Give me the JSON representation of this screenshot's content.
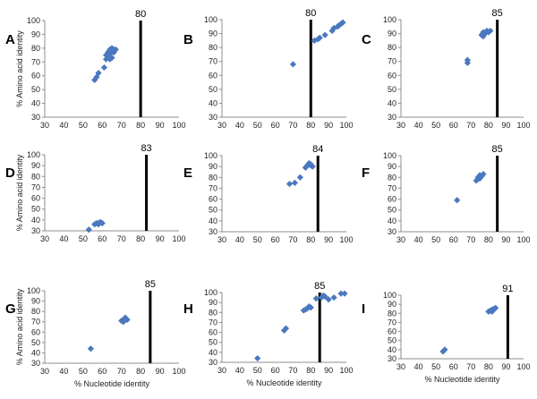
{
  "chart_data": [
    {
      "panel": "A",
      "type": "scatter",
      "threshold_label": "80",
      "threshold": 80,
      "xlim": [
        30,
        100
      ],
      "ylim": [
        30,
        100
      ],
      "xlabel": "",
      "ylabel": "% Amino acid identity",
      "marker_color": "#4a78bf",
      "threshold_color": "#000000",
      "points": [
        [
          56,
          57
        ],
        [
          57,
          59
        ],
        [
          58,
          62
        ],
        [
          61,
          66
        ],
        [
          62,
          72
        ],
        [
          63,
          74
        ],
        [
          62,
          75
        ],
        [
          63,
          77
        ],
        [
          64,
          76
        ],
        [
          64,
          79
        ],
        [
          65,
          80
        ],
        [
          66,
          79
        ],
        [
          65,
          78
        ],
        [
          67,
          79
        ],
        [
          66,
          77
        ],
        [
          64,
          72
        ],
        [
          65,
          73
        ]
      ]
    },
    {
      "panel": "B",
      "type": "scatter",
      "threshold_label": "80",
      "threshold": 80,
      "xlim": [
        30,
        100
      ],
      "ylim": [
        30,
        100
      ],
      "xlabel": "",
      "ylabel": "",
      "marker_color": "#4a78bf",
      "threshold_color": "#000000",
      "points": [
        [
          70,
          68
        ],
        [
          82,
          85
        ],
        [
          84,
          86
        ],
        [
          85,
          87
        ],
        [
          88,
          89
        ],
        [
          92,
          92
        ],
        [
          93,
          94
        ],
        [
          95,
          95
        ],
        [
          96,
          96
        ],
        [
          97,
          97
        ],
        [
          98,
          98
        ]
      ]
    },
    {
      "panel": "C",
      "type": "scatter",
      "threshold_label": "85",
      "threshold": 85,
      "xlim": [
        30,
        100
      ],
      "ylim": [
        30,
        100
      ],
      "xlabel": "",
      "ylabel": "",
      "marker_color": "#4a78bf",
      "threshold_color": "#000000",
      "points": [
        [
          68,
          69
        ],
        [
          68,
          71
        ],
        [
          76,
          89
        ],
        [
          77,
          91
        ],
        [
          78,
          90
        ],
        [
          79,
          92
        ],
        [
          80,
          91
        ],
        [
          81,
          92
        ],
        [
          77,
          88
        ]
      ]
    },
    {
      "panel": "D",
      "type": "scatter",
      "threshold_label": "83",
      "threshold": 83,
      "xlim": [
        30,
        100
      ],
      "ylim": [
        30,
        100
      ],
      "xlabel": "",
      "ylabel": "% Amino acid identity",
      "marker_color": "#4a78bf",
      "threshold_color": "#000000",
      "points": [
        [
          53,
          31
        ],
        [
          56,
          36
        ],
        [
          57,
          37
        ],
        [
          58,
          37
        ],
        [
          59,
          38
        ],
        [
          60,
          37
        ],
        [
          58,
          36
        ]
      ]
    },
    {
      "panel": "E",
      "type": "scatter",
      "threshold_label": "84",
      "threshold": 84,
      "xlim": [
        30,
        100
      ],
      "ylim": [
        30,
        100
      ],
      "xlabel": "",
      "ylabel": "",
      "marker_color": "#4a78bf",
      "threshold_color": "#000000",
      "points": [
        [
          68,
          74
        ],
        [
          71,
          75
        ],
        [
          74,
          80
        ],
        [
          77,
          89
        ],
        [
          78,
          91
        ],
        [
          79,
          92
        ],
        [
          79,
          93
        ],
        [
          80,
          91
        ],
        [
          81,
          90
        ],
        [
          80,
          92
        ]
      ]
    },
    {
      "panel": "F",
      "type": "scatter",
      "threshold_label": "85",
      "threshold": 85,
      "xlim": [
        30,
        100
      ],
      "ylim": [
        30,
        100
      ],
      "xlabel": "",
      "ylabel": "",
      "marker_color": "#4a78bf",
      "threshold_color": "#000000",
      "points": [
        [
          62,
          59
        ],
        [
          73,
          77
        ],
        [
          74,
          80
        ],
        [
          75,
          82
        ],
        [
          76,
          81
        ],
        [
          77,
          83
        ],
        [
          75,
          79
        ]
      ]
    },
    {
      "panel": "G",
      "type": "scatter",
      "threshold_label": "85",
      "threshold": 85,
      "xlim": [
        30,
        100
      ],
      "ylim": [
        30,
        100
      ],
      "xlabel": "% Nucleotide identity",
      "ylabel": "% Amino acid identity",
      "marker_color": "#4a78bf",
      "threshold_color": "#000000",
      "points": [
        [
          54,
          44
        ],
        [
          70,
          71
        ],
        [
          71,
          72
        ],
        [
          72,
          73
        ],
        [
          73,
          72
        ],
        [
          71,
          70
        ],
        [
          72,
          74
        ]
      ]
    },
    {
      "panel": "H",
      "type": "scatter",
      "threshold_label": "85",
      "threshold": 85,
      "xlim": [
        30,
        100
      ],
      "ylim": [
        30,
        100
      ],
      "xlabel": "% Nucleotide identity",
      "ylabel": "",
      "marker_color": "#4a78bf",
      "threshold_color": "#000000",
      "points": [
        [
          50,
          34
        ],
        [
          65,
          62
        ],
        [
          66,
          64
        ],
        [
          76,
          82
        ],
        [
          77,
          83
        ],
        [
          78,
          84
        ],
        [
          79,
          86
        ],
        [
          80,
          85
        ],
        [
          83,
          94
        ],
        [
          86,
          95
        ],
        [
          87,
          97
        ],
        [
          88,
          96
        ],
        [
          90,
          93
        ],
        [
          93,
          95
        ],
        [
          97,
          99
        ],
        [
          99,
          99
        ]
      ]
    },
    {
      "panel": "I",
      "type": "scatter",
      "threshold_label": "91",
      "threshold": 91,
      "xlim": [
        30,
        100
      ],
      "ylim": [
        30,
        100
      ],
      "xlabel": "% Nucleotide identity",
      "ylabel": "",
      "marker_color": "#4a78bf",
      "threshold_color": "#000000",
      "points": [
        [
          54,
          38
        ],
        [
          55,
          40
        ],
        [
          80,
          82
        ],
        [
          81,
          83
        ],
        [
          82,
          84
        ],
        [
          83,
          85
        ],
        [
          84,
          86
        ],
        [
          82,
          82
        ],
        [
          83,
          84
        ]
      ]
    }
  ]
}
